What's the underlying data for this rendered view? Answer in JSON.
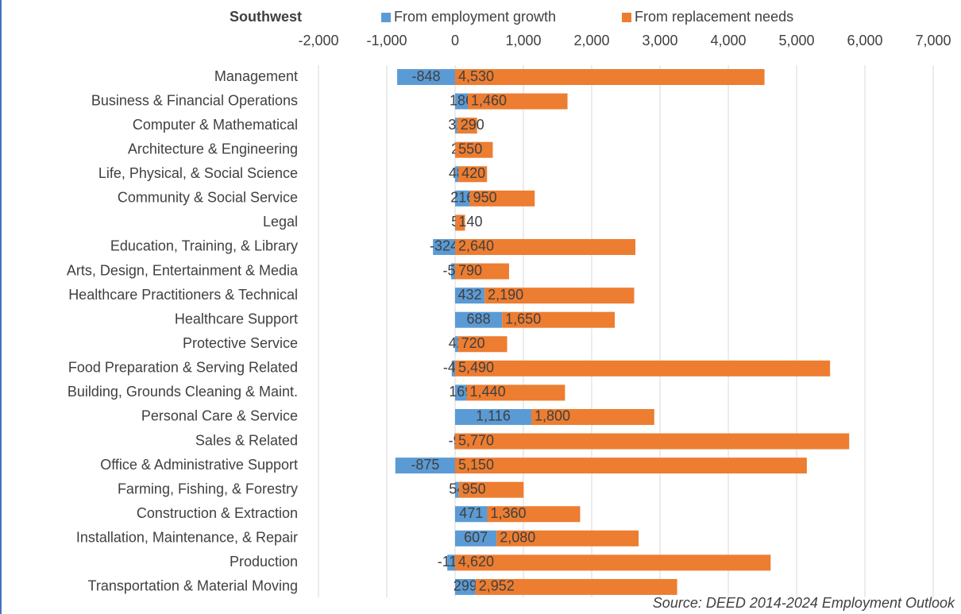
{
  "chart_data": {
    "type": "stacked_barh",
    "title": "Southwest",
    "source": "Source: DEED 2014-2024 Employment Outlook",
    "categories": [
      "Management",
      "Business & Financial Operations",
      "Computer & Mathematical",
      "Architecture & Engineering",
      "Life, Physical, & Social Science",
      "Community & Social Service",
      "Legal",
      "Education, Training, & Library",
      "Arts, Design, Entertainment & Media",
      "Healthcare Practitioners & Technical",
      "Healthcare Support",
      "Protective Service",
      "Food Preparation & Serving Related",
      "Building, Grounds Cleaning & Maint.",
      "Personal Care & Service",
      "Sales & Related",
      "Office & Administrative Support",
      "Farming, Fishing, & Forestry",
      "Construction & Extraction",
      "Installation, Maintenance, & Repair",
      "Production",
      "Transportation & Material Moving"
    ],
    "series": [
      {
        "name": "From employment growth",
        "color": "#5b9bd5",
        "values": [
          -848,
          186,
          32,
          2,
          48,
          216,
          5,
          -324,
          -58,
          432,
          688,
          42,
          -49,
          169,
          1116,
          -9,
          -875,
          54,
          471,
          607,
          -114,
          299
        ],
        "value_labels": [
          "-848",
          "186",
          "32",
          "2",
          "48",
          "216",
          "5",
          "-324",
          "-58",
          "432",
          "688",
          "42",
          "-49",
          "169",
          "1,116",
          "-9",
          "-875",
          "54",
          "471",
          "607",
          "-114",
          "299"
        ]
      },
      {
        "name": "From replacement needs",
        "color": "#ed7d31",
        "values": [
          4530,
          1460,
          290,
          550,
          420,
          950,
          140,
          2640,
          790,
          2190,
          1650,
          720,
          5490,
          1440,
          1800,
          5770,
          5150,
          950,
          1360,
          2080,
          4620,
          2952
        ],
        "value_labels": [
          "4,530",
          "1,460",
          "290",
          "550",
          "420",
          "950",
          "140",
          "2,640",
          "790",
          "2,190",
          "1,650",
          "720",
          "5,490",
          "1,440",
          "1,800",
          "5,770",
          "5,150",
          "950",
          "1,360",
          "2,080",
          "4,620",
          "2,952"
        ]
      }
    ],
    "xlim": [
      -2000,
      7000
    ],
    "xticks": [
      {
        "value": -2000,
        "label": "-2,000"
      },
      {
        "value": -1000,
        "label": "-1,000"
      },
      0,
      {
        "value": 1000,
        "label": "1,000"
      },
      {
        "value": 2000,
        "label": "2,000"
      },
      {
        "value": 3000,
        "label": "3,000"
      },
      {
        "value": 4000,
        "label": "4,000"
      },
      {
        "value": 5000,
        "label": "5,000"
      },
      {
        "value": 6000,
        "label": "6,000"
      },
      {
        "value": 7000,
        "label": "7,000"
      }
    ],
    "grid": true
  }
}
